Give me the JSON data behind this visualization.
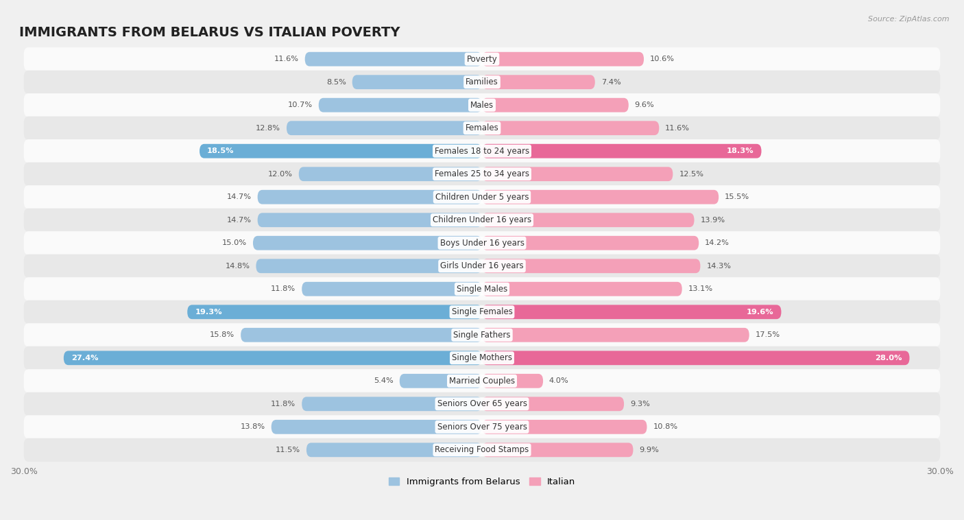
{
  "title": "IMMIGRANTS FROM BELARUS VS ITALIAN POVERTY",
  "source": "Source: ZipAtlas.com",
  "categories": [
    "Poverty",
    "Families",
    "Males",
    "Females",
    "Females 18 to 24 years",
    "Females 25 to 34 years",
    "Children Under 5 years",
    "Children Under 16 years",
    "Boys Under 16 years",
    "Girls Under 16 years",
    "Single Males",
    "Single Females",
    "Single Fathers",
    "Single Mothers",
    "Married Couples",
    "Seniors Over 65 years",
    "Seniors Over 75 years",
    "Receiving Food Stamps"
  ],
  "belarus_values": [
    11.6,
    8.5,
    10.7,
    12.8,
    18.5,
    12.0,
    14.7,
    14.7,
    15.0,
    14.8,
    11.8,
    19.3,
    15.8,
    27.4,
    5.4,
    11.8,
    13.8,
    11.5
  ],
  "italian_values": [
    10.6,
    7.4,
    9.6,
    11.6,
    18.3,
    12.5,
    15.5,
    13.9,
    14.2,
    14.3,
    13.1,
    19.6,
    17.5,
    28.0,
    4.0,
    9.3,
    10.8,
    9.9
  ],
  "belarus_color": "#9dc3e0",
  "italian_color": "#f4a0b8",
  "belarus_highlight_color": "#6baed6",
  "italian_highlight_color": "#e86898",
  "highlight_rows": [
    4,
    11,
    13
  ],
  "xlim": 30.0,
  "background_color": "#f0f0f0",
  "row_bg_light": "#fafafa",
  "row_bg_dark": "#e8e8e8",
  "bar_height": 0.62,
  "legend_belarus": "Immigrants from Belarus",
  "legend_italian": "Italian",
  "title_fontsize": 14,
  "label_fontsize": 8.5,
  "value_fontsize": 8.2
}
